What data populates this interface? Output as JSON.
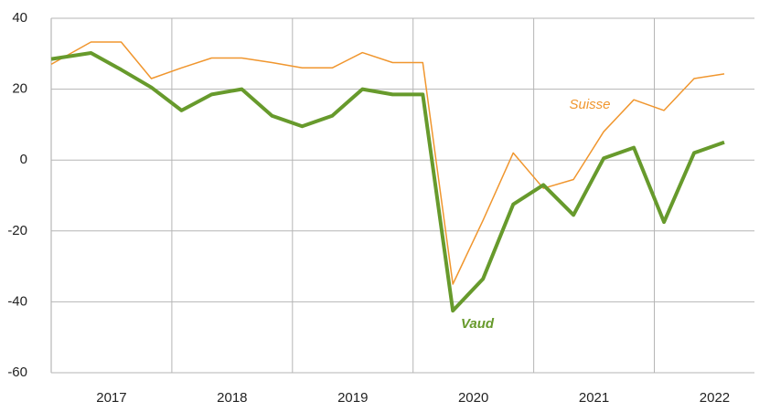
{
  "chart_data": {
    "type": "line",
    "x": [
      2017.0,
      2017.33,
      2017.58,
      2017.83,
      2018.08,
      2018.33,
      2018.58,
      2018.83,
      2019.08,
      2019.33,
      2019.58,
      2019.83,
      2020.08,
      2020.33,
      2020.58,
      2020.83,
      2021.08,
      2021.33,
      2021.58,
      2021.83,
      2022.08,
      2022.33,
      2022.58
    ],
    "series": [
      {
        "name": "Suisse",
        "color": "#f0962e",
        "values": [
          27,
          33.3,
          33.3,
          23,
          26,
          28.8,
          28.8,
          27.5,
          26,
          26,
          30.3,
          27.5,
          27.5,
          -35,
          -17,
          2,
          -8,
          -5.5,
          8,
          17,
          14,
          23,
          24.3
        ]
      },
      {
        "name": "Vaud",
        "color": "#679a2c",
        "values": [
          28.5,
          30.2,
          25.5,
          20.5,
          14,
          18.5,
          20,
          12.5,
          9.5,
          12.5,
          20,
          18.5,
          18.5,
          -42.5,
          -33.5,
          -12.5,
          -7,
          -15.5,
          0.5,
          3.5,
          -17.5,
          2,
          5
        ]
      }
    ],
    "xlim": [
      2017.0,
      2022.83
    ],
    "xticks": [
      {
        "value": 2017.5,
        "label": "2017"
      },
      {
        "value": 2018.5,
        "label": "2018"
      },
      {
        "value": 2019.5,
        "label": "2019"
      },
      {
        "value": 2020.5,
        "label": "2020"
      },
      {
        "value": 2021.5,
        "label": "2021"
      },
      {
        "value": 2022.5,
        "label": "2022"
      }
    ],
    "ylim": [
      -60,
      40
    ],
    "yticks": [
      -60,
      -40,
      -20,
      0,
      20,
      40
    ],
    "grid": true
  }
}
